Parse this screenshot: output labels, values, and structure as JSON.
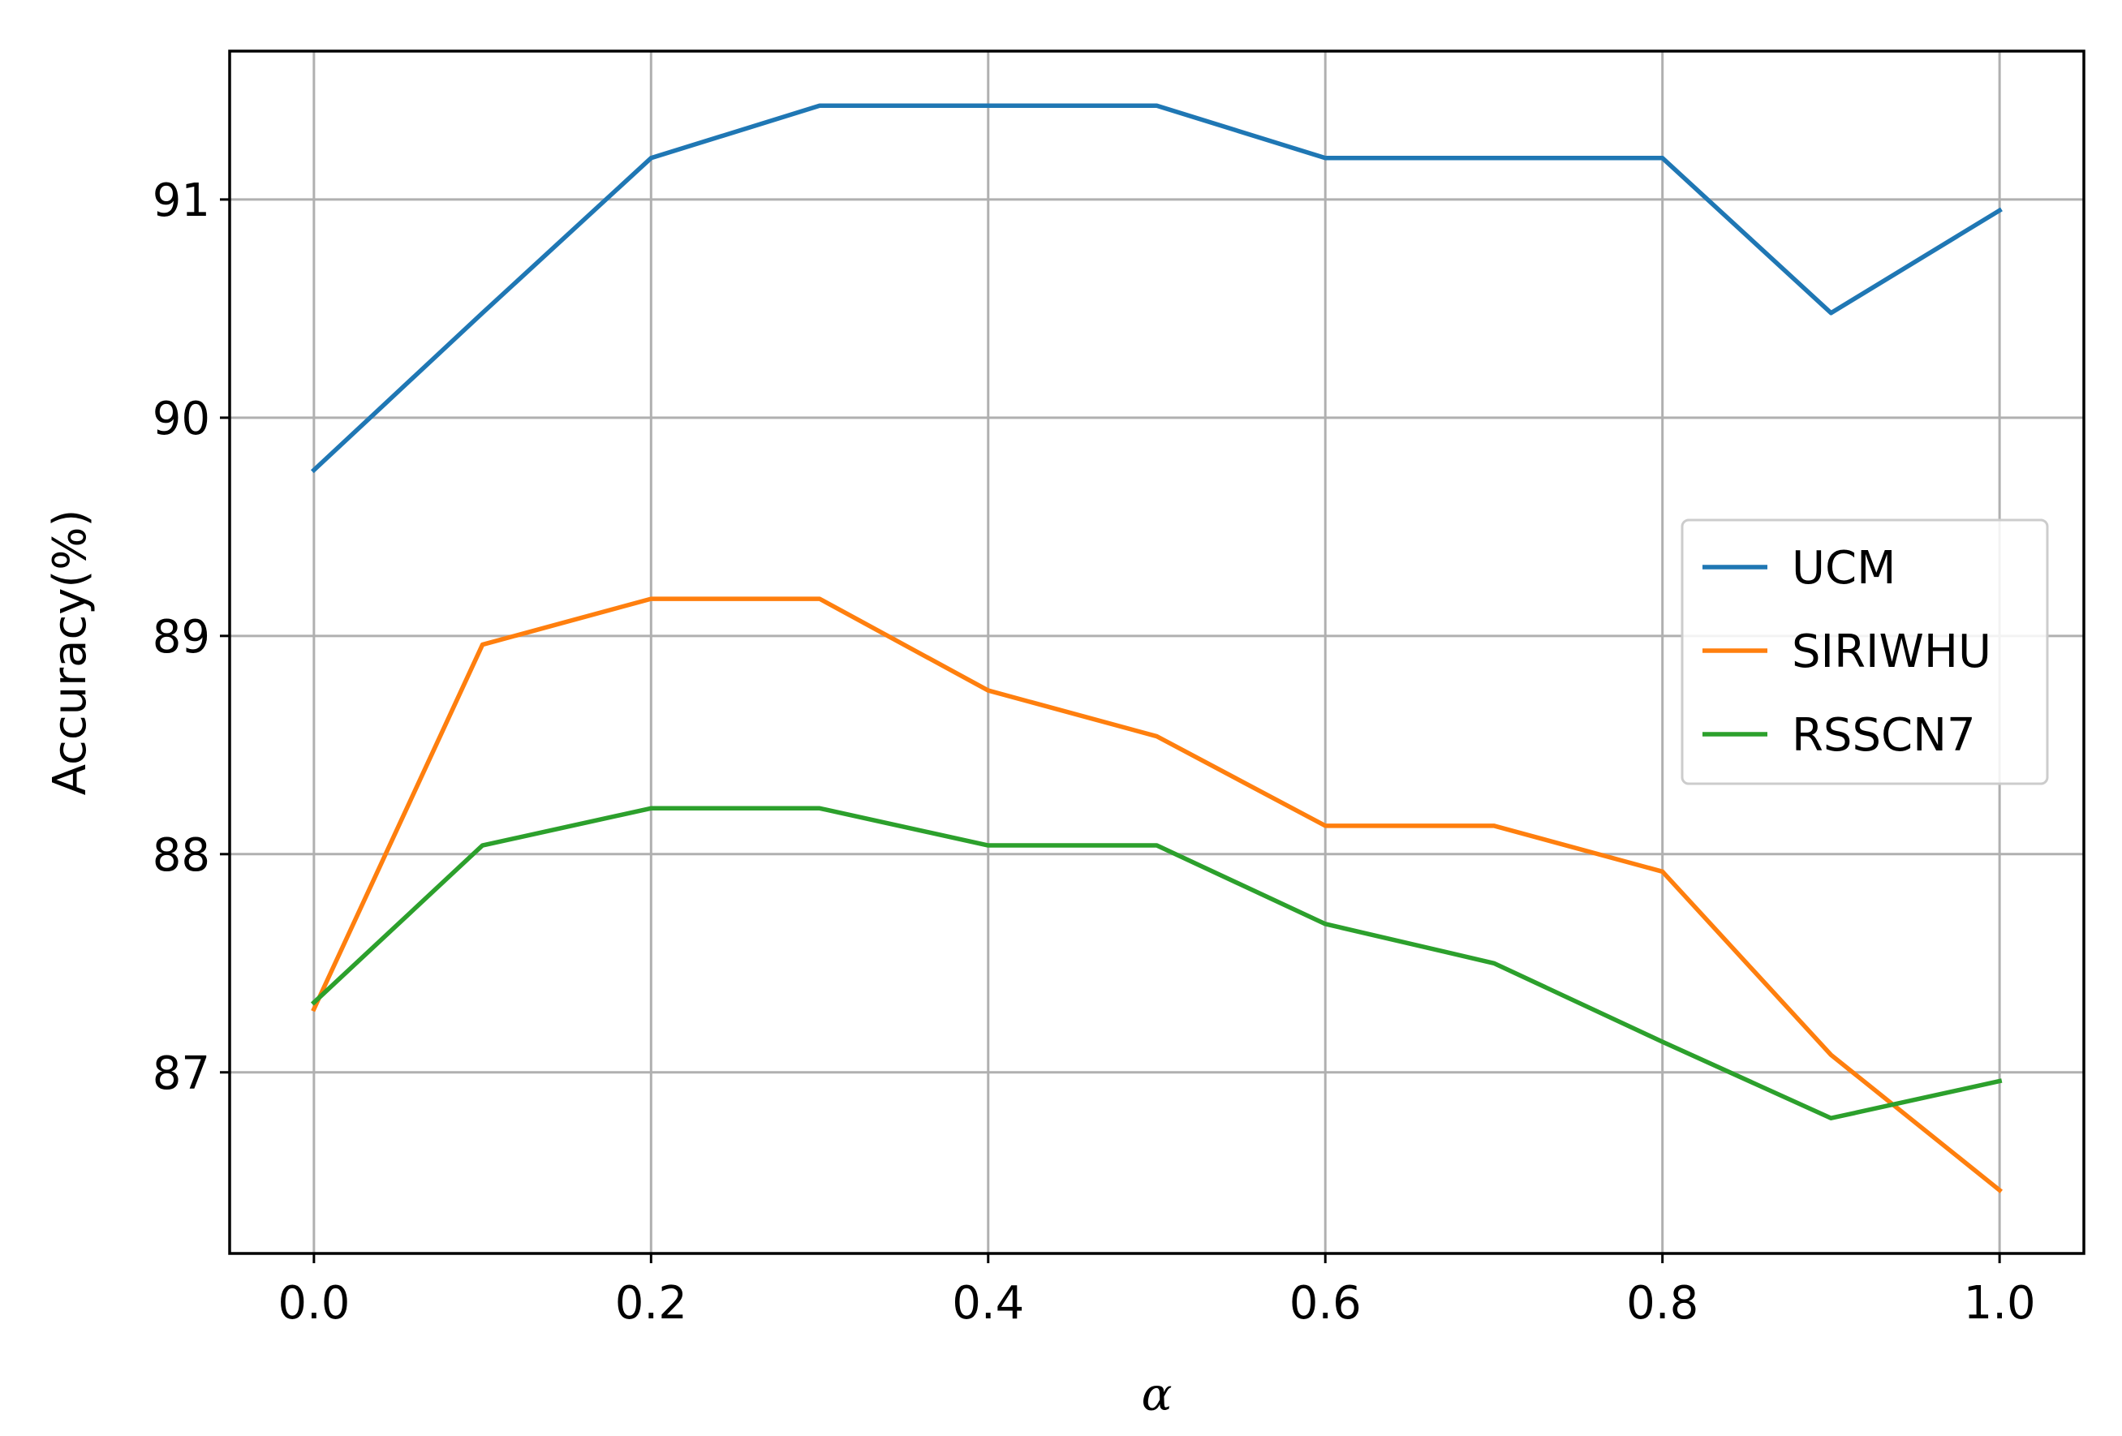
{
  "chart_data": {
    "type": "line",
    "xlabel": "α",
    "ylabel": "Accuracy(%)",
    "xlim": [
      -0.05,
      1.05
    ],
    "ylim": [
      86.17,
      91.68
    ],
    "x": [
      0.0,
      0.1,
      0.2,
      0.3,
      0.4,
      0.5,
      0.6,
      0.7,
      0.8,
      0.9,
      1.0
    ],
    "xticks": [
      "0.0",
      "0.2",
      "0.4",
      "0.6",
      "0.8",
      "1.0"
    ],
    "xtick_values": [
      0.0,
      0.2,
      0.4,
      0.6,
      0.8,
      1.0
    ],
    "yticks": [
      "87",
      "88",
      "89",
      "90",
      "91"
    ],
    "ytick_values": [
      87,
      88,
      89,
      90,
      91
    ],
    "grid": true,
    "legend_position": "center-right",
    "series": [
      {
        "name": "UCM",
        "color": "#1f77b4",
        "values": [
          89.76,
          90.48,
          91.19,
          91.43,
          91.43,
          91.43,
          91.19,
          91.19,
          91.19,
          90.48,
          90.95
        ]
      },
      {
        "name": "SIRIWHU",
        "color": "#ff7f0e",
        "values": [
          87.29,
          88.96,
          89.17,
          89.17,
          88.75,
          88.54,
          88.13,
          88.13,
          87.92,
          87.08,
          86.46
        ]
      },
      {
        "name": "RSSCN7",
        "color": "#2ca02c",
        "values": [
          87.32,
          88.04,
          88.21,
          88.21,
          88.04,
          88.04,
          87.68,
          87.5,
          87.14,
          86.79,
          86.96
        ]
      }
    ]
  }
}
